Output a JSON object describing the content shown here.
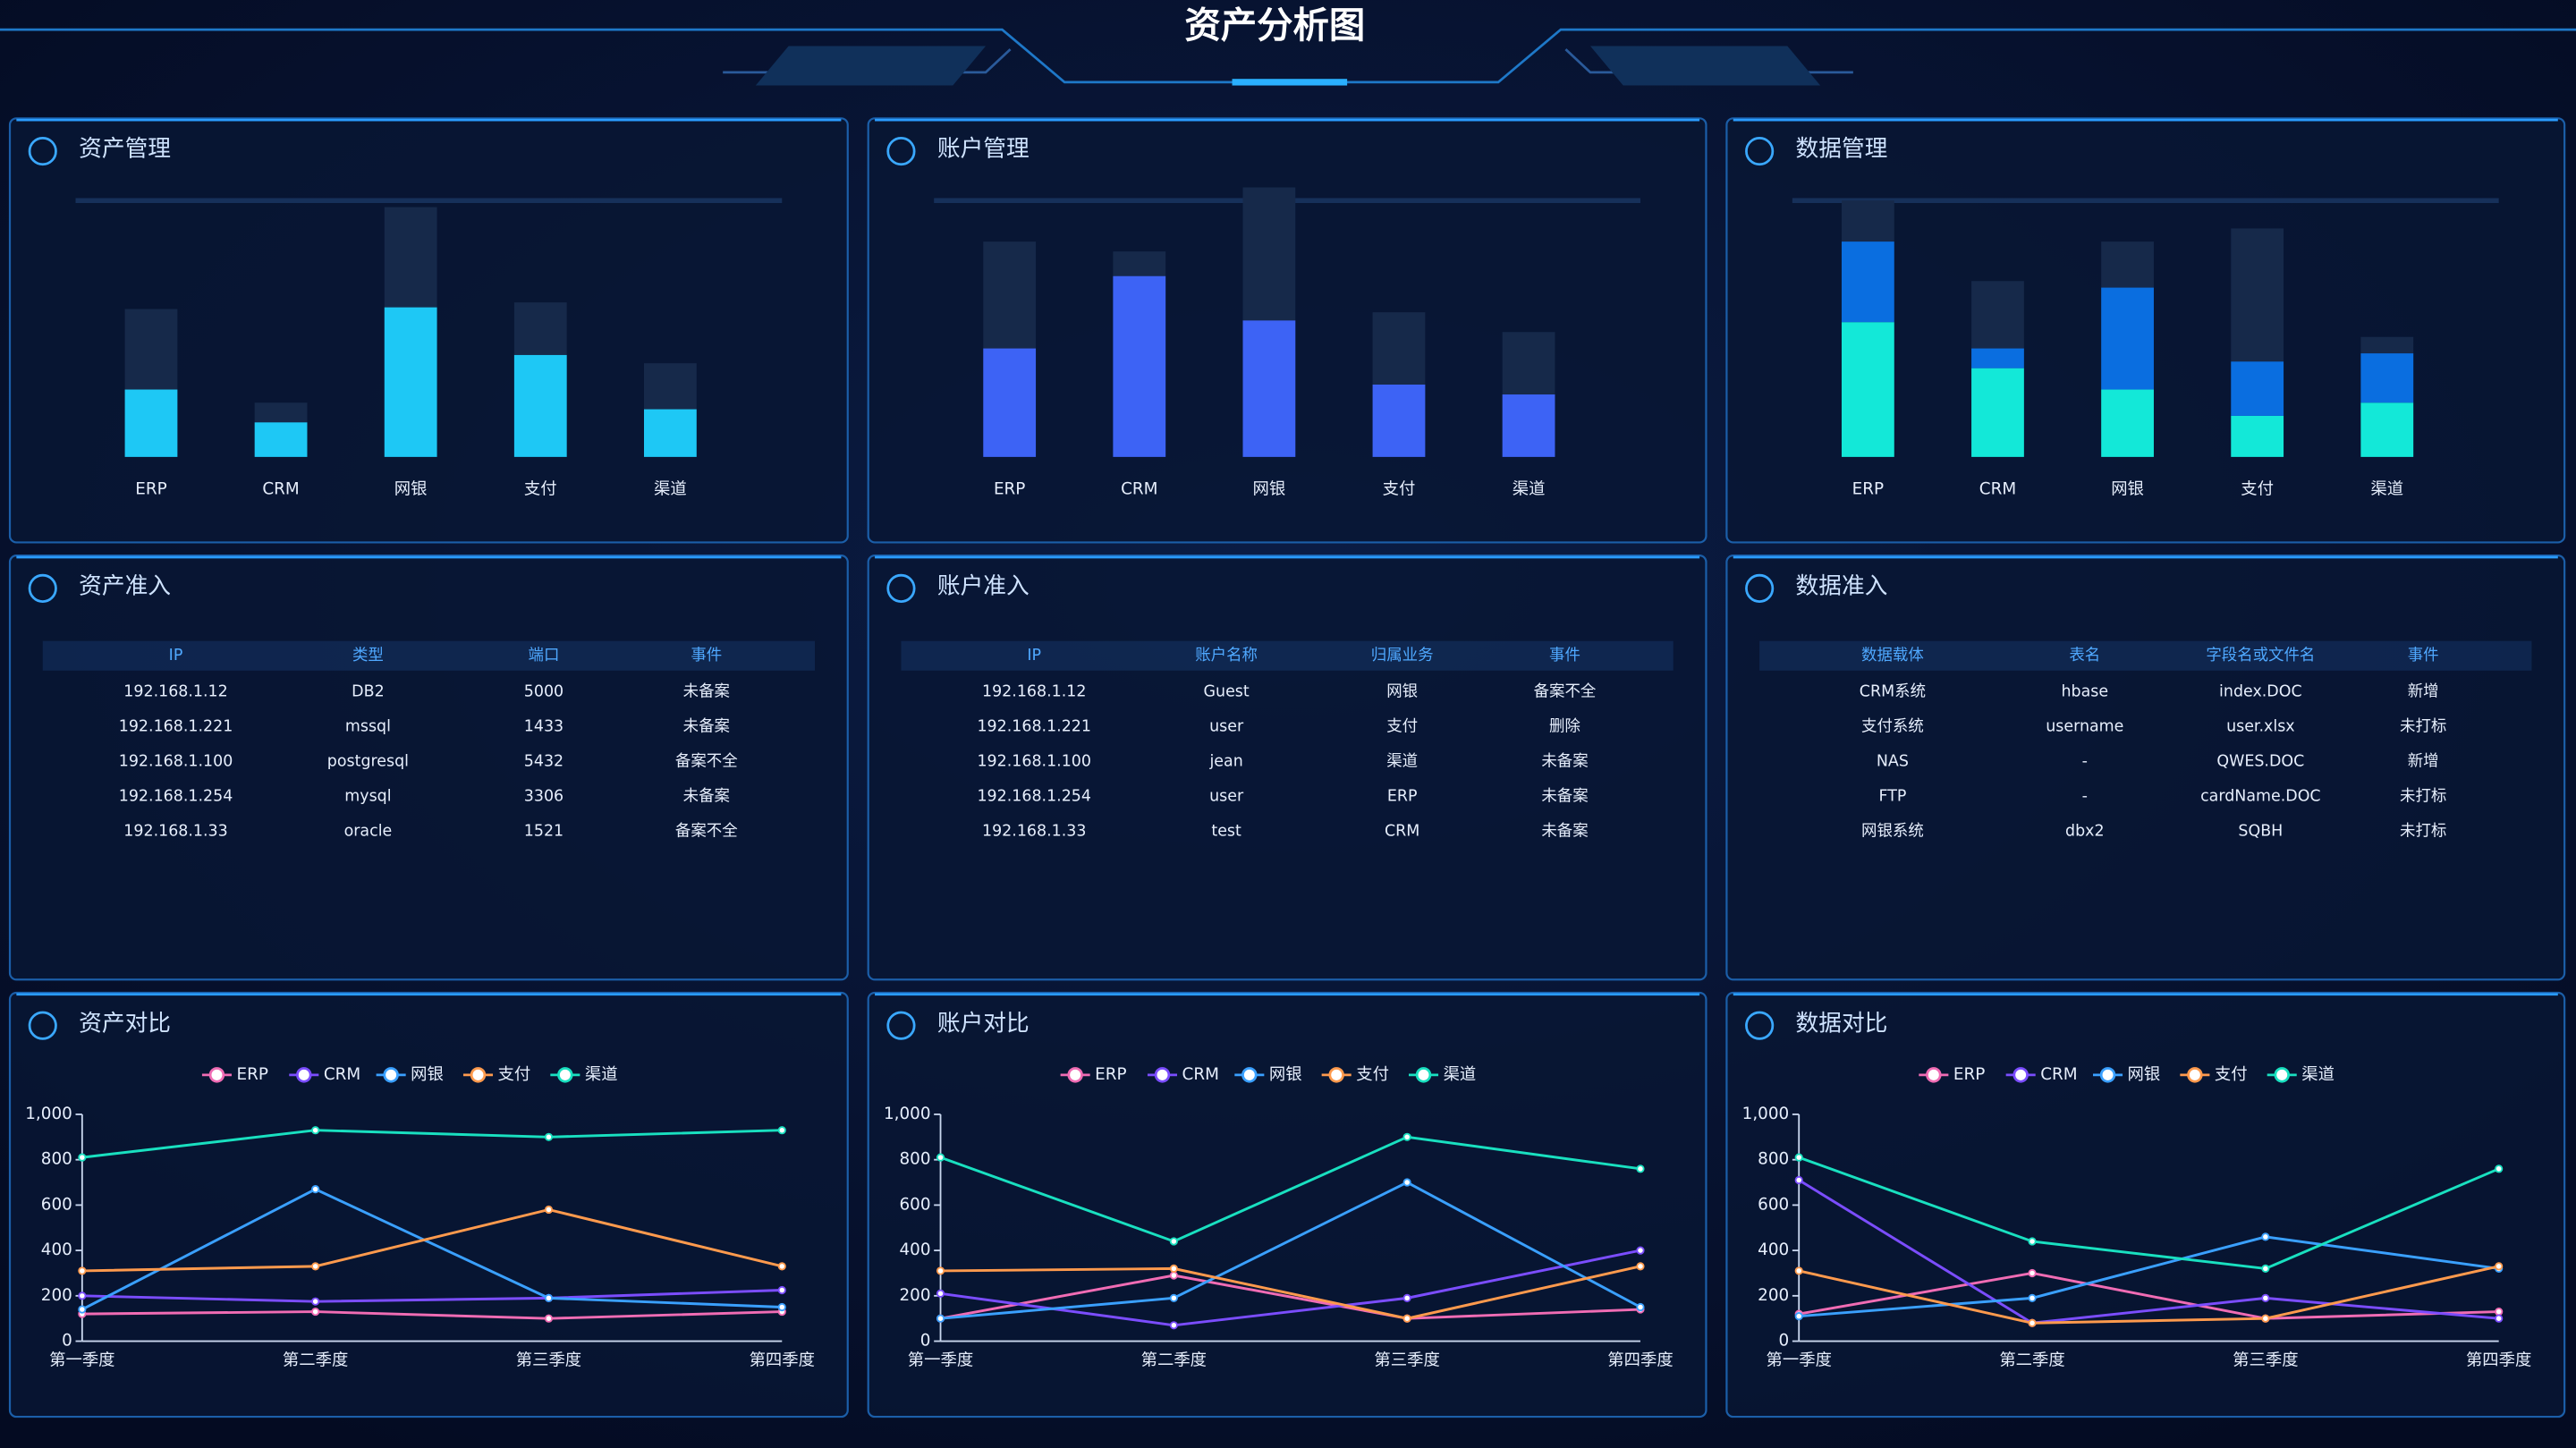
{
  "title": "资产分析图",
  "chart_data": [
    {
      "type": "bar",
      "title": "资产管理",
      "categories": [
        "ERP",
        "CRM",
        "网银",
        "支付",
        "渠道"
      ],
      "ylim": [
        0,
        170
      ],
      "series": [
        {
          "color": "#16294a",
          "values": [
            90,
            33,
            152,
            94,
            57
          ]
        },
        {
          "color": "#1ec8f5",
          "values": [
            41,
            21,
            91,
            62,
            29
          ]
        }
      ]
    },
    {
      "type": "bar",
      "title": "账户管理",
      "categories": [
        "ERP",
        "CRM",
        "网银",
        "支付",
        "渠道"
      ],
      "ylim": [
        0,
        170
      ],
      "series": [
        {
          "color": "#16294a",
          "values": [
            131,
            125,
            164,
            88,
            76
          ]
        },
        {
          "color": "#3d63f5",
          "values": [
            66,
            110,
            83,
            44,
            38
          ]
        }
      ]
    },
    {
      "type": "bar",
      "title": "数据管理",
      "categories": [
        "ERP",
        "CRM",
        "网银",
        "支付",
        "渠道"
      ],
      "ylim": [
        0,
        170
      ],
      "series": [
        {
          "color": "#16294a",
          "values": [
            156,
            107,
            131,
            139,
            73
          ]
        },
        {
          "color": "#13e8d8",
          "values": [
            82,
            54,
            41,
            25,
            33
          ]
        },
        {
          "color": "#0a6ee0",
          "values": [
            49,
            12,
            62,
            33,
            30
          ]
        }
      ]
    },
    {
      "type": "line",
      "title": "资产对比",
      "categories": [
        "第一季度",
        "第二季度",
        "第三季度",
        "第四季度"
      ],
      "ylim": [
        0,
        1000
      ],
      "yticks": [
        0,
        200,
        400,
        600,
        800,
        {
          "value": 1000,
          "label": "1,000"
        }
      ],
      "legend": "top",
      "series": [
        {
          "name": "ERP",
          "color": "#f06cb4",
          "values": [
            120,
            130,
            100,
            130
          ]
        },
        {
          "name": "CRM",
          "color": "#7b4dff",
          "values": [
            200,
            175,
            190,
            225
          ]
        },
        {
          "name": "网银",
          "color": "#3aa0ff",
          "values": [
            140,
            670,
            190,
            150
          ]
        },
        {
          "name": "支付",
          "color": "#ff9a4d",
          "values": [
            310,
            330,
            580,
            330
          ]
        },
        {
          "name": "渠道",
          "color": "#19e0c0",
          "values": [
            810,
            930,
            900,
            930
          ]
        }
      ]
    },
    {
      "type": "line",
      "title": "账户对比",
      "categories": [
        "第一季度",
        "第二季度",
        "第三季度",
        "第四季度"
      ],
      "ylim": [
        0,
        1000
      ],
      "yticks": [
        0,
        200,
        400,
        600,
        800,
        {
          "value": 1000,
          "label": "1,000"
        }
      ],
      "legend": "top",
      "series": [
        {
          "name": "ERP",
          "color": "#f06cb4",
          "values": [
            100,
            290,
            100,
            140
          ]
        },
        {
          "name": "CRM",
          "color": "#7b4dff",
          "values": [
            210,
            70,
            190,
            400
          ]
        },
        {
          "name": "网银",
          "color": "#3aa0ff",
          "values": [
            100,
            190,
            700,
            150
          ]
        },
        {
          "name": "支付",
          "color": "#ff9a4d",
          "values": [
            310,
            320,
            100,
            330
          ]
        },
        {
          "name": "渠道",
          "color": "#19e0c0",
          "values": [
            810,
            440,
            900,
            760
          ]
        }
      ]
    },
    {
      "type": "line",
      "title": "数据对比",
      "categories": [
        "第一季度",
        "第二季度",
        "第三季度",
        "第四季度"
      ],
      "ylim": [
        0,
        1000
      ],
      "yticks": [
        0,
        200,
        400,
        600,
        800,
        {
          "value": 1000,
          "label": "1,000"
        }
      ],
      "legend": "top",
      "series": [
        {
          "name": "ERP",
          "color": "#f06cb4",
          "values": [
            120,
            300,
            100,
            130
          ]
        },
        {
          "name": "CRM",
          "color": "#7b4dff",
          "values": [
            710,
            80,
            190,
            100
          ]
        },
        {
          "name": "网银",
          "color": "#3aa0ff",
          "values": [
            110,
            190,
            460,
            320
          ]
        },
        {
          "name": "支付",
          "color": "#ff9a4d",
          "values": [
            310,
            80,
            100,
            330
          ]
        },
        {
          "name": "渠道",
          "color": "#19e0c0",
          "values": [
            810,
            440,
            320,
            760
          ]
        }
      ]
    }
  ],
  "tables": [
    {
      "title": "资产准入",
      "columns": [
        "IP",
        "类型",
        "端口",
        "事件"
      ],
      "rows": [
        [
          "192.168.1.12",
          "DB2",
          "5000",
          "未备案"
        ],
        [
          "192.168.1.221",
          "mssql",
          "1433",
          "未备案"
        ],
        [
          "192.168.1.100",
          "postgresql",
          "5432",
          "备案不全"
        ],
        [
          "192.168.1.254",
          "mysql",
          "3306",
          "未备案"
        ],
        [
          "192.168.1.33",
          "oracle",
          "1521",
          "备案不全"
        ]
      ]
    },
    {
      "title": "账户准入",
      "columns": [
        "IP",
        "账户名称",
        "归属业务",
        "事件"
      ],
      "rows": [
        [
          "192.168.1.12",
          "Guest",
          "网银",
          "备案不全"
        ],
        [
          "192.168.1.221",
          "user",
          "支付",
          "删除"
        ],
        [
          "192.168.1.100",
          "jean",
          "渠道",
          "未备案"
        ],
        [
          "192.168.1.254",
          "user",
          "ERP",
          "未备案"
        ],
        [
          "192.168.1.33",
          "test",
          "CRM",
          "未备案"
        ]
      ]
    },
    {
      "title": "数据准入",
      "columns": [
        "数据载体",
        "表名",
        "字段名或文件名",
        "事件"
      ],
      "rows": [
        [
          "CRM系统",
          "hbase",
          "index.DOC",
          "新增"
        ],
        [
          "支付系统",
          "username",
          "user.xlsx",
          "未打标"
        ],
        [
          "NAS",
          "-",
          "QWES.DOC",
          "新增"
        ],
        [
          "FTP",
          "-",
          "cardName.DOC",
          "未打标"
        ],
        [
          "网银系统",
          "dbx2",
          "SQBH",
          "未打标"
        ]
      ]
    }
  ]
}
